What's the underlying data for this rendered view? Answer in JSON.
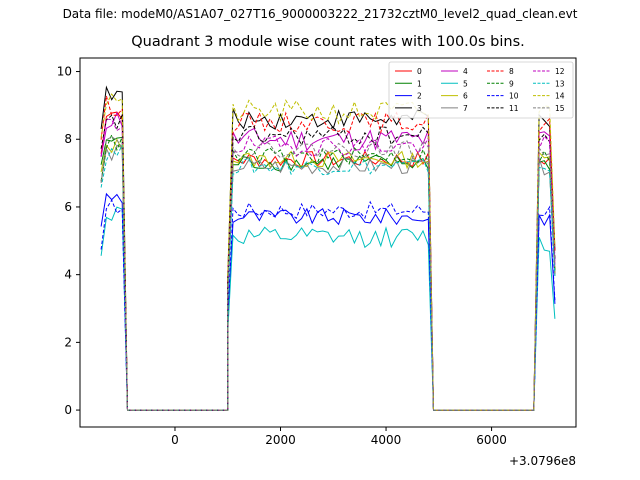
{
  "figure": {
    "suptitle": "Data file: modeM0/AS1A07_027T16_9000003222_21732cztM0_level2_quad_clean.evt"
  },
  "chart_data": {
    "type": "line",
    "title": "Quadrant 3 module wise count rates with 100.0s bins.",
    "xlabel": "",
    "ylabel": "",
    "x_offset_label": "+3.0796e8",
    "xlim": [
      -1800,
      7600
    ],
    "ylim": [
      -0.5,
      10.4
    ],
    "xticks": [
      0,
      2000,
      4000,
      6000
    ],
    "xtick_labels": [
      "0",
      "2000",
      "4000",
      "6000"
    ],
    "yticks": [
      0,
      2,
      4,
      6,
      8,
      10
    ],
    "ytick_labels": [
      "0",
      "2",
      "4",
      "6",
      "8",
      "10"
    ],
    "grid": false,
    "legend": {
      "position": "top-right",
      "ncol": 4
    },
    "segments": [
      {
        "x_start": -1400,
        "x_end": -1000
      },
      {
        "x_start": -900,
        "x_end": 1000
      },
      {
        "x_start": 1000,
        "x_end": 4800
      },
      {
        "x_start": 4900,
        "x_end": 6800
      },
      {
        "x_start": 6900,
        "x_end": 7200
      }
    ],
    "series": [
      {
        "name": "0",
        "color": "#ff0000",
        "dash": "solid",
        "levels": [
          8.8,
          0,
          7.4,
          0,
          7.4
        ],
        "noise": 0.25
      },
      {
        "name": "1",
        "color": "#008000",
        "dash": "solid",
        "levels": [
          8.0,
          0,
          7.3,
          0,
          7.3
        ],
        "noise": 0.25
      },
      {
        "name": "2",
        "color": "#0000ff",
        "dash": "solid",
        "levels": [
          6.3,
          0,
          5.7,
          0,
          5.7
        ],
        "noise": 0.25
      },
      {
        "name": "3",
        "color": "#000000",
        "dash": "solid",
        "levels": [
          9.3,
          0,
          8.6,
          0,
          8.6
        ],
        "noise": 0.3
      },
      {
        "name": "4",
        "color": "#bf00bf",
        "dash": "solid",
        "levels": [
          8.6,
          0,
          8.0,
          0,
          8.0
        ],
        "noise": 0.35
      },
      {
        "name": "5",
        "color": "#00bfbf",
        "dash": "solid",
        "levels": [
          5.8,
          0,
          5.1,
          0,
          4.9
        ],
        "noise": 0.3
      },
      {
        "name": "6",
        "color": "#bfbf00",
        "dash": "solid",
        "levels": [
          7.8,
          0,
          7.4,
          0,
          7.4
        ],
        "noise": 0.25
      },
      {
        "name": "7",
        "color": "#808080",
        "dash": "solid",
        "levels": [
          7.6,
          0,
          7.2,
          0,
          7.2
        ],
        "noise": 0.25
      },
      {
        "name": "8",
        "color": "#ff0000",
        "dash": "dashed",
        "levels": [
          9.0,
          0,
          8.5,
          0,
          8.5
        ],
        "noise": 0.3
      },
      {
        "name": "9",
        "color": "#008000",
        "dash": "dashed",
        "levels": [
          7.9,
          0,
          7.5,
          0,
          7.5
        ],
        "noise": 0.25
      },
      {
        "name": "10",
        "color": "#0000ff",
        "dash": "dashed",
        "levels": [
          6.0,
          0,
          5.9,
          0,
          5.9
        ],
        "noise": 0.25
      },
      {
        "name": "11",
        "color": "#000000",
        "dash": "dashed",
        "levels": [
          8.5,
          0,
          8.1,
          0,
          8.1
        ],
        "noise": 0.3
      },
      {
        "name": "12",
        "color": "#bf00bf",
        "dash": "dashed",
        "levels": [
          8.4,
          0,
          7.8,
          0,
          7.8
        ],
        "noise": 0.3
      },
      {
        "name": "13",
        "color": "#00bfbf",
        "dash": "dashed",
        "levels": [
          7.6,
          0,
          7.2,
          0,
          7.2
        ],
        "noise": 0.25
      },
      {
        "name": "14",
        "color": "#bfbf00",
        "dash": "dashed",
        "levels": [
          9.2,
          0,
          8.8,
          0,
          8.8
        ],
        "noise": 0.35
      },
      {
        "name": "15",
        "color": "#808080",
        "dash": "dashed",
        "levels": [
          8.0,
          0,
          7.7,
          0,
          7.7
        ],
        "noise": 0.25
      }
    ]
  }
}
